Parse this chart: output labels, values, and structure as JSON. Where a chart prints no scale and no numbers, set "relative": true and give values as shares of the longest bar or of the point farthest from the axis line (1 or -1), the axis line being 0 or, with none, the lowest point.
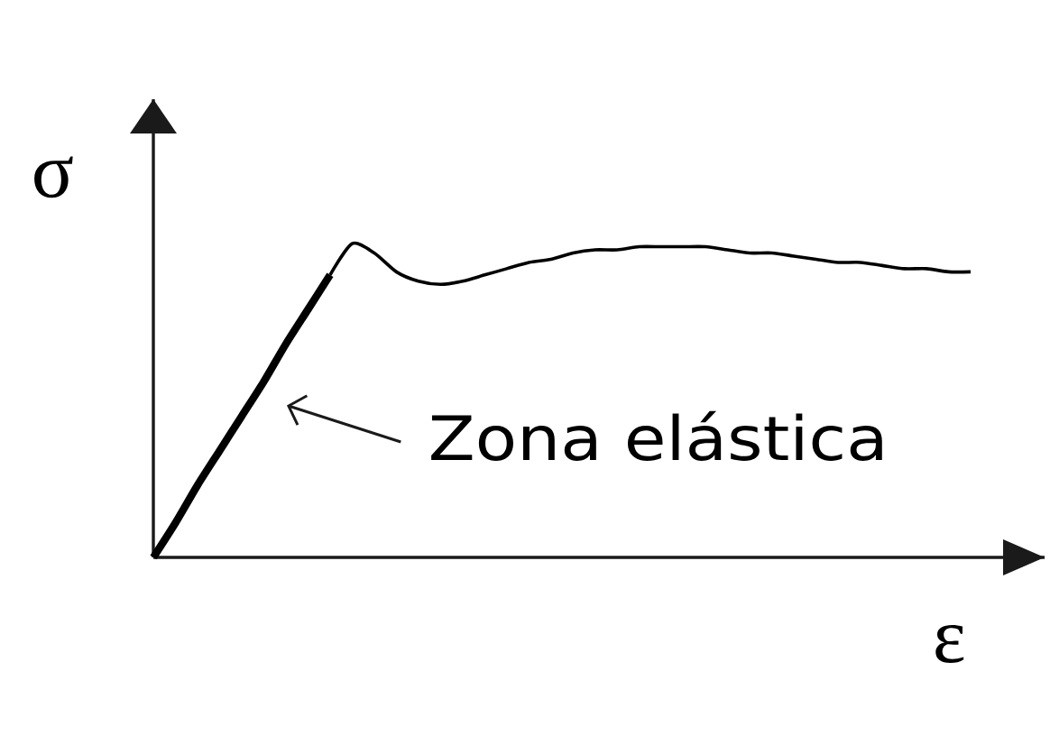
{
  "chart_data": {
    "type": "line",
    "relative": true,
    "xlabel": "ε",
    "ylabel": "σ",
    "annotations": [
      "Zona elástica"
    ],
    "categories": [
      null,
      null,
      null,
      null,
      null,
      null,
      null,
      null,
      null,
      null,
      null,
      null,
      null,
      null,
      null,
      null,
      null,
      null,
      null,
      null,
      null,
      null,
      null,
      null,
      null,
      null,
      null,
      null,
      null,
      null,
      null,
      null,
      null,
      null,
      null,
      null,
      null,
      null
    ],
    "series": [
      {
        "color": "#000000",
        "values": [
          0,
          0.11,
          0.23,
          0.34,
          0.45,
          0.56,
          0.68,
          0.79,
          0.9,
          null,
          null,
          null,
          null,
          null,
          null,
          null,
          null,
          null,
          null,
          null,
          null,
          null,
          null,
          null,
          null,
          null,
          null,
          null,
          null,
          null,
          null,
          null,
          null,
          null,
          null,
          null,
          null,
          null
        ]
      },
      {
        "color": "#000000",
        "values": [
          null,
          null,
          null,
          null,
          null,
          null,
          null,
          null,
          0.9,
          1.0,
          0.97,
          0.91,
          0.88,
          0.87,
          0.88,
          0.9,
          0.92,
          0.94,
          0.95,
          0.97,
          0.98,
          0.98,
          0.99,
          0.99,
          0.99,
          0.99,
          0.98,
          0.97,
          0.97,
          0.96,
          0.95,
          0.94,
          0.94,
          0.93,
          0.92,
          0.92,
          0.91,
          0.91
        ]
      }
    ]
  }
}
